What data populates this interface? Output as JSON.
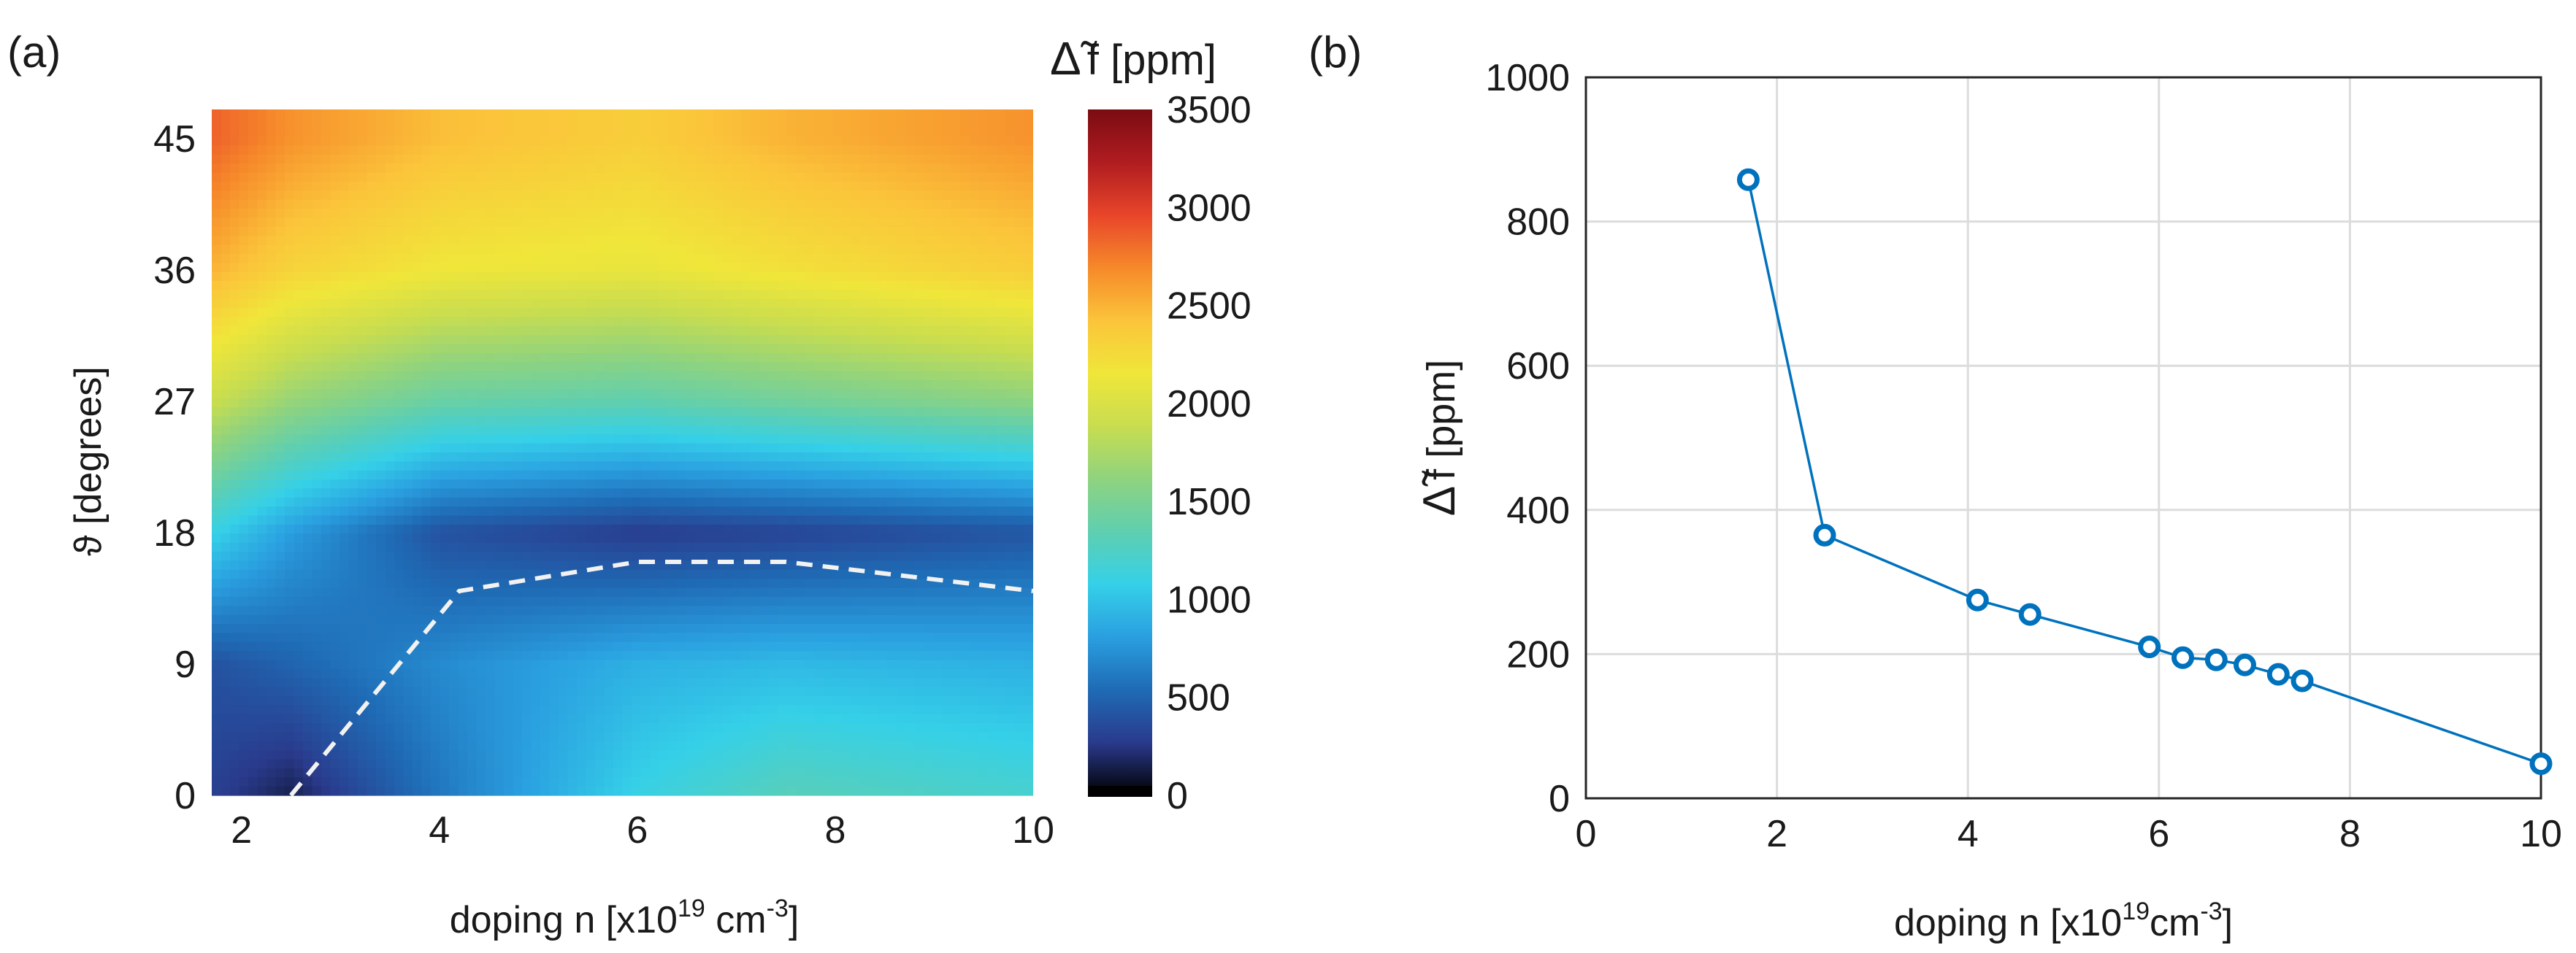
{
  "chart_data": [
    {
      "panel_label": "(a)",
      "type": "heatmap",
      "xlabel": "doping n [x10",
      "xlabel_exp": "19",
      "xlabel_unit": " cm",
      "xlabel_unit_exp": "-3",
      "xlabel_end": "]",
      "ylabel": "ϑ [degrees]",
      "x_ticks": [
        "2",
        "4",
        "6",
        "8",
        "10"
      ],
      "x_tick_values": [
        2,
        4,
        6,
        8,
        10
      ],
      "y_ticks": [
        "0",
        "9",
        "18",
        "27",
        "36",
        "45"
      ],
      "y_tick_values": [
        0,
        9,
        18,
        27,
        36,
        45
      ],
      "xlim": [
        1.7,
        10.0
      ],
      "ylim": [
        0,
        47
      ],
      "grid_x": [
        1.7,
        2.5,
        4.0,
        6.0,
        7.5,
        10.0
      ],
      "grid_y": [
        0,
        9,
        18,
        27,
        36,
        45
      ],
      "z": [
        [
          300,
          150,
          600,
          1100,
          1300,
          1200
        ],
        [
          400,
          500,
          700,
          900,
          950,
          900
        ],
        [
          1100,
          800,
          400,
          280,
          320,
          420
        ],
        [
          1900,
          1650,
          1400,
          1350,
          1450,
          1600
        ],
        [
          2500,
          2300,
          2150,
          2100,
          2200,
          2350
        ],
        [
          2850,
          2650,
          2450,
          2350,
          2500,
          2650
        ]
      ],
      "min_curve": {
        "style": "dashed",
        "x": [
          2.5,
          4.2,
          6.0,
          7.5,
          10.0
        ],
        "y": [
          0,
          14,
          16,
          16,
          14
        ]
      },
      "colorbar": {
        "label_prefix": "Δ̃",
        "label": "f [ppm]",
        "ticks": [
          "0",
          "500",
          "1000",
          "1500",
          "2000",
          "2500",
          "3000",
          "3500"
        ],
        "tick_values": [
          0,
          500,
          1000,
          1500,
          2000,
          2500,
          3000,
          3500
        ],
        "range": [
          0,
          3500
        ],
        "colormap": [
          "#000000",
          "#2a3a8c",
          "#1f6bb5",
          "#2a9fe0",
          "#35d0e8",
          "#5fcfb0",
          "#8fd37f",
          "#c8dd4f",
          "#f0e63a",
          "#fbc43a",
          "#f6892a",
          "#e8452a",
          "#b01c20",
          "#7a0c12"
        ]
      }
    },
    {
      "panel_label": "(b)",
      "type": "line",
      "xlabel": "doping n [x10",
      "xlabel_exp": "19",
      "xlabel_unit": "cm",
      "xlabel_unit_exp": "-3",
      "xlabel_end": "]",
      "ylabel_prefix": "Δ̃",
      "ylabel": "f [ppm]",
      "xlim": [
        0,
        10
      ],
      "ylim": [
        0,
        1000
      ],
      "x_ticks": [
        "0",
        "2",
        "4",
        "6",
        "8",
        "10"
      ],
      "x_tick_values": [
        0,
        2,
        4,
        6,
        8,
        10
      ],
      "y_ticks": [
        "0",
        "200",
        "400",
        "600",
        "800",
        "1000"
      ],
      "y_tick_values": [
        0,
        200,
        400,
        600,
        800,
        1000
      ],
      "grid": true,
      "color": "#0072bd",
      "series": [
        {
          "marker": "circle",
          "x": [
            1.7,
            2.5,
            4.1,
            4.65,
            5.9,
            6.25,
            6.6,
            6.9,
            7.25,
            7.5,
            10.0
          ],
          "y": [
            858,
            365,
            275,
            255,
            210,
            195,
            192,
            185,
            172,
            163,
            48
          ]
        }
      ]
    }
  ]
}
